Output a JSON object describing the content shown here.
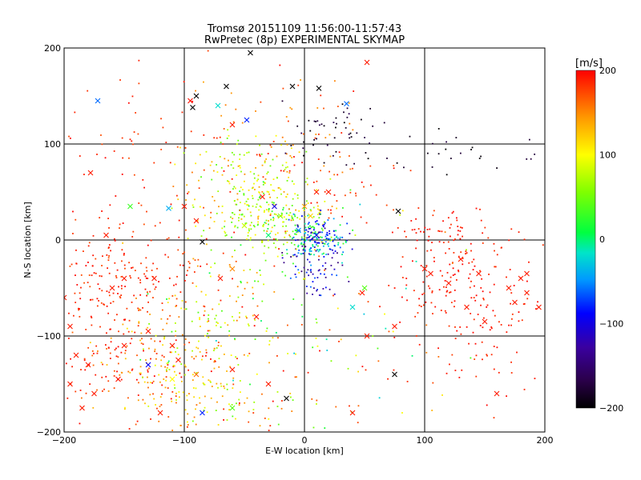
{
  "chart_data": {
    "type": "scatter",
    "title": "Tromsø 20151109 11:56:00-11:57:43",
    "subtitle": "RwPretec (8p) EXPERIMENTAL SKYMAP",
    "xlabel": "E-W location [km]",
    "ylabel": "N-S location [km]",
    "xlim": [
      -200,
      200
    ],
    "ylim": [
      -200,
      200
    ],
    "xticks": [
      -200,
      -100,
      0,
      100,
      200
    ],
    "yticks": [
      -200,
      -100,
      0,
      100,
      200
    ],
    "grid": true,
    "colorbar": {
      "label": "[m/s]",
      "range": [
        -200,
        200
      ],
      "ticks": [
        200,
        100,
        0,
        -100,
        -200
      ],
      "colormap": "rainbow (black at -200, red at +200)"
    },
    "points": [
      [
        -95,
        145,
        195,
        "x"
      ],
      [
        -90,
        150,
        -200,
        "x"
      ],
      [
        -93,
        138,
        -200,
        "x"
      ],
      [
        -65,
        160,
        -200,
        "x"
      ],
      [
        -48,
        125,
        -80,
        "x"
      ],
      [
        -72,
        140,
        -20,
        "x"
      ],
      [
        -172,
        145,
        -60,
        "x"
      ],
      [
        -45,
        195,
        -200,
        "x"
      ],
      [
        -10,
        160,
        -200,
        "x"
      ],
      [
        12,
        158,
        -200,
        "x"
      ],
      [
        35,
        142,
        -60,
        "x"
      ],
      [
        52,
        185,
        190,
        "x"
      ],
      [
        -113,
        33,
        -40,
        "x"
      ],
      [
        -145,
        35,
        30,
        "x"
      ],
      [
        -178,
        70,
        190,
        "x"
      ],
      [
        -150,
        -40,
        190,
        "x"
      ],
      [
        -130,
        -130,
        -90,
        "x"
      ],
      [
        -105,
        -125,
        190,
        "x"
      ],
      [
        -85,
        -180,
        -80,
        "x"
      ],
      [
        -60,
        -175,
        40,
        "x"
      ],
      [
        -155,
        -145,
        195,
        "x"
      ],
      [
        -180,
        -130,
        190,
        "x"
      ],
      [
        -190,
        -120,
        190,
        "x"
      ],
      [
        -195,
        -90,
        190,
        "x"
      ],
      [
        -200,
        -60,
        190,
        "x"
      ],
      [
        -120,
        -180,
        190,
        "x"
      ],
      [
        -100,
        35,
        190,
        "x"
      ],
      [
        -85,
        -2,
        -200,
        "x"
      ],
      [
        -25,
        35,
        -100,
        "x"
      ],
      [
        -35,
        45,
        190,
        "x"
      ],
      [
        0,
        35,
        140,
        "x"
      ],
      [
        20,
        50,
        190,
        "x"
      ],
      [
        50,
        -50,
        40,
        "x"
      ],
      [
        48,
        -55,
        190,
        "x"
      ],
      [
        52,
        -100,
        190,
        "x"
      ],
      [
        75,
        -90,
        190,
        "x"
      ],
      [
        78,
        30,
        -200,
        "x"
      ],
      [
        75,
        -140,
        -200,
        "x"
      ],
      [
        40,
        -180,
        190,
        "x"
      ],
      [
        -15,
        -165,
        -200,
        "x"
      ],
      [
        160,
        -160,
        190,
        "x"
      ],
      [
        180,
        -40,
        190,
        "x"
      ],
      [
        185,
        -55,
        190,
        "x"
      ],
      [
        175,
        -65,
        190,
        "x"
      ],
      [
        170,
        -50,
        190,
        "x"
      ],
      [
        195,
        -70,
        190,
        "x"
      ],
      [
        145,
        -35,
        190,
        "x"
      ],
      [
        130,
        -20,
        190,
        "x"
      ],
      [
        120,
        -45,
        190,
        "x"
      ],
      [
        105,
        -35,
        190,
        "x"
      ],
      [
        135,
        -70,
        190,
        "x"
      ],
      [
        150,
        -85,
        190,
        "x"
      ],
      [
        185,
        -35,
        190,
        "x"
      ],
      [
        -175,
        -160,
        190,
        "x"
      ],
      [
        -110,
        -110,
        190,
        "x"
      ],
      [
        -60,
        120,
        190,
        "x"
      ],
      [
        -70,
        -40,
        190,
        "x"
      ],
      [
        -40,
        -80,
        190,
        "x"
      ],
      [
        -125,
        -40,
        190,
        "x"
      ],
      [
        -160,
        -50,
        190,
        "x"
      ],
      [
        -165,
        5,
        190,
        "x"
      ],
      [
        -90,
        20,
        190,
        "x"
      ],
      [
        10,
        50,
        190,
        "x"
      ],
      [
        5,
        25,
        120,
        "x"
      ],
      [
        -20,
        25,
        60,
        "x"
      ],
      [
        -50,
        15,
        80,
        "x"
      ],
      [
        -30,
        5,
        0,
        "x"
      ],
      [
        -5,
        10,
        -50,
        "x"
      ],
      [
        10,
        5,
        -100,
        "x"
      ],
      [
        -60,
        -30,
        150,
        "x"
      ],
      [
        -130,
        -95,
        190,
        "x"
      ],
      [
        -90,
        -140,
        160,
        "x"
      ],
      [
        -110,
        -145,
        100,
        "x"
      ],
      [
        -150,
        -110,
        190,
        "x"
      ],
      [
        -195,
        -150,
        190,
        "x"
      ],
      [
        -185,
        -175,
        190,
        "x"
      ],
      [
        -60,
        -135,
        190,
        "x"
      ],
      [
        -30,
        -150,
        190,
        "x"
      ],
      [
        40,
        -70,
        -20,
        "x"
      ],
      [
        100,
        -30,
        190,
        "x"
      ]
    ],
    "clusters": [
      {
        "center": [
          -160,
          -35
        ],
        "spread": [
          32,
          28
        ],
        "count": 190,
        "vmin": 170,
        "vmax": 200
      },
      {
        "center": [
          -125,
          -130
        ],
        "spread": [
          28,
          32
        ],
        "count": 170,
        "vmin": 110,
        "vmax": 200
      },
      {
        "center": [
          -175,
          -120
        ],
        "spread": [
          22,
          30
        ],
        "count": 60,
        "vmin": 170,
        "vmax": 200
      },
      {
        "center": [
          -85,
          -135
        ],
        "spread": [
          24,
          38
        ],
        "count": 120,
        "vmin": 50,
        "vmax": 160
      },
      {
        "center": [
          -60,
          -60
        ],
        "spread": [
          26,
          40
        ],
        "count": 90,
        "vmin": 30,
        "vmax": 200
      },
      {
        "center": [
          -45,
          55
        ],
        "spread": [
          30,
          28
        ],
        "count": 210,
        "vmin": 40,
        "vmax": 150
      },
      {
        "center": [
          -20,
          20
        ],
        "spread": [
          22,
          16
        ],
        "count": 160,
        "vmin": 10,
        "vmax": 120
      },
      {
        "center": [
          8,
          2
        ],
        "spread": [
          12,
          12
        ],
        "count": 170,
        "vmin": -140,
        "vmax": 30
      },
      {
        "center": [
          10,
          -25
        ],
        "spread": [
          12,
          18
        ],
        "count": 70,
        "vmin": -150,
        "vmax": -60
      },
      {
        "center": [
          -25,
          110
        ],
        "spread": [
          40,
          30
        ],
        "count": 80,
        "vmin": 140,
        "vmax": 200
      },
      {
        "center": [
          -140,
          90
        ],
        "spread": [
          35,
          45
        ],
        "count": 60,
        "vmin": 170,
        "vmax": 200
      },
      {
        "center": [
          25,
          110
        ],
        "spread": [
          22,
          18
        ],
        "count": 50,
        "vmin": -200,
        "vmax": -160
      },
      {
        "center": [
          130,
          -40
        ],
        "spread": [
          30,
          32
        ],
        "count": 150,
        "vmin": 180,
        "vmax": 200
      },
      {
        "center": [
          160,
          -95
        ],
        "spread": [
          25,
          40
        ],
        "count": 50,
        "vmin": 180,
        "vmax": 200
      },
      {
        "center": [
          120,
          10
        ],
        "spread": [
          20,
          10
        ],
        "count": 30,
        "vmin": 180,
        "vmax": 200
      },
      {
        "center": [
          140,
          85
        ],
        "spread": [
          35,
          12
        ],
        "count": 25,
        "vmin": -200,
        "vmax": -170
      },
      {
        "center": [
          50,
          40
        ],
        "spread": [
          25,
          25
        ],
        "count": 35,
        "vmin": 170,
        "vmax": 200
      },
      {
        "center": [
          0,
          -80
        ],
        "spread": [
          60,
          60
        ],
        "count": 120,
        "vmin": -30,
        "vmax": 200
      },
      {
        "center": [
          -60,
          -180
        ],
        "spread": [
          40,
          15
        ],
        "count": 50,
        "vmin": 40,
        "vmax": 200
      },
      {
        "center": [
          60,
          -150
        ],
        "spread": [
          50,
          40
        ],
        "count": 25,
        "vmin": 160,
        "vmax": 200
      }
    ]
  }
}
